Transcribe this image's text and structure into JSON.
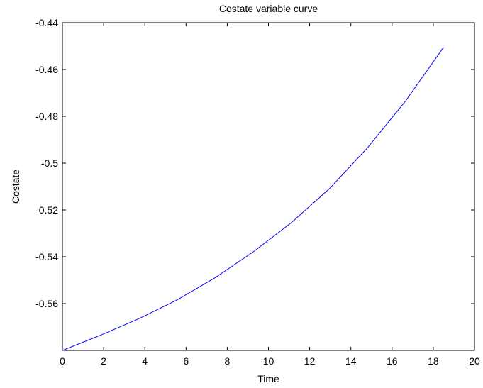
{
  "chart_data": {
    "type": "line",
    "title": "Costate variable curve",
    "xlabel": "Time",
    "ylabel": "Costate",
    "xlim": [
      0,
      20
    ],
    "ylim": [
      -0.58,
      -0.44
    ],
    "grid": false,
    "x_ticks": [
      0,
      2,
      4,
      6,
      8,
      10,
      12,
      14,
      16,
      18,
      20
    ],
    "x_tick_labels": [
      "0",
      "2",
      "4",
      "6",
      "8",
      "10",
      "12",
      "14",
      "16",
      "18",
      "20"
    ],
    "y_ticks": [
      -0.44,
      -0.46,
      -0.48,
      -0.5,
      -0.52,
      -0.54,
      -0.56
    ],
    "y_tick_labels": [
      "-0.44",
      "-0.46",
      "-0.48",
      "-0.5",
      "-0.52",
      "-0.54",
      "-0.56"
    ],
    "series": [
      {
        "color": "#0000ff",
        "x": [
          0,
          1.85,
          3.7,
          5.55,
          7.4,
          9.25,
          11.1,
          12.95,
          14.8,
          16.65,
          18.5
        ],
        "y": [
          -0.58,
          -0.5735,
          -0.5665,
          -0.5585,
          -0.549,
          -0.538,
          -0.5255,
          -0.511,
          -0.4935,
          -0.4735,
          -0.4505
        ]
      }
    ]
  }
}
